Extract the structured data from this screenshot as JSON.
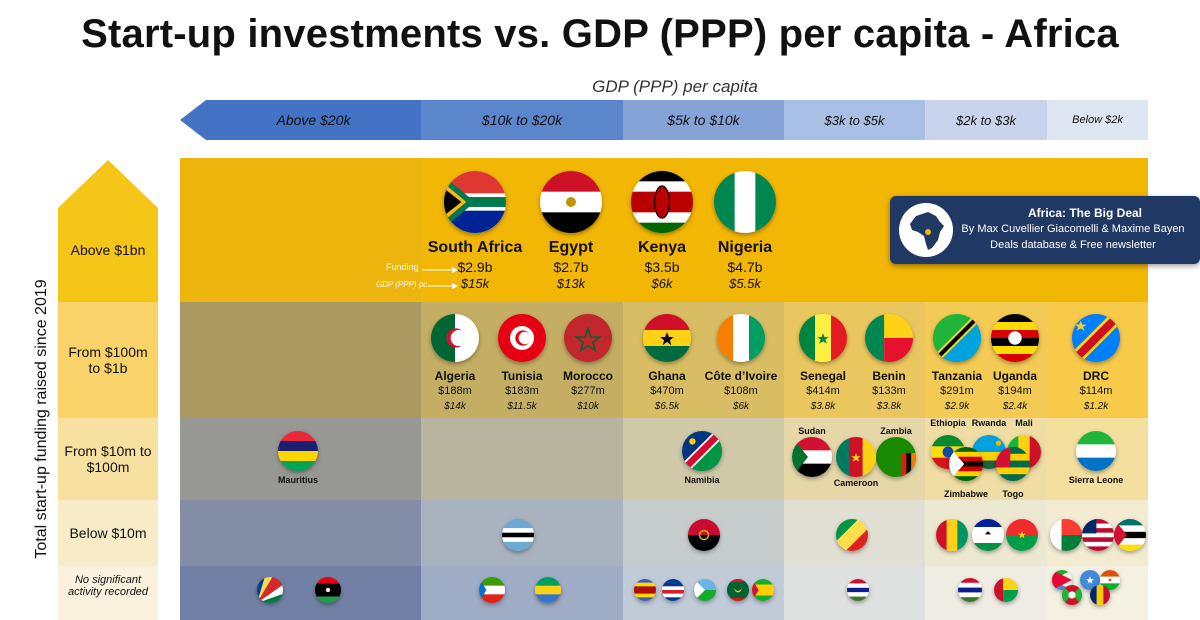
{
  "title": "Start-up investments vs. GDP (PPP) per capita - Africa",
  "chart_data": {
    "type": "table",
    "title": "Start-up investments vs. GDP (PPP) per capita - Africa",
    "xlabel": "GDP (PPP) per capita",
    "ylabel": "Total start-up funding raised since 2019",
    "columns": [
      "Above $20k",
      "$10k to $20k",
      "$5k to $10k",
      "$3k to $5k",
      "$2k to $3k",
      "Below $2k"
    ],
    "rows": [
      "Above $1bn",
      "From $100m to $1b",
      "From $10m to $100m",
      "Below $10m",
      "No significant activity recorded"
    ],
    "legend": {
      "funding": "Funding",
      "gdp": "GDP (PPP) pc"
    },
    "countries": [
      {
        "name": "South Africa",
        "funding": "$2.9b",
        "gdp": "$15k"
      },
      {
        "name": "Egypt",
        "funding": "$2.7b",
        "gdp": "$13k"
      },
      {
        "name": "Kenya",
        "funding": "$3.5b",
        "gdp": "$6k"
      },
      {
        "name": "Nigeria",
        "funding": "$4.7b",
        "gdp": "$5.5k"
      },
      {
        "name": "Algeria",
        "funding": "$188m",
        "gdp": "$14k"
      },
      {
        "name": "Tunisia",
        "funding": "$183m",
        "gdp": "$11.5k"
      },
      {
        "name": "Morocco",
        "funding": "$277m",
        "gdp": "$10k"
      },
      {
        "name": "Ghana",
        "funding": "$470m",
        "gdp": "$6.5k"
      },
      {
        "name": "Côte d’Ivoire",
        "funding": "$108m",
        "gdp": "$6k"
      },
      {
        "name": "Senegal",
        "funding": "$414m",
        "gdp": "$3.8k"
      },
      {
        "name": "Benin",
        "funding": "$133m",
        "gdp": "$3.8k"
      },
      {
        "name": "Tanzania",
        "funding": "$291m",
        "gdp": "$2.9k"
      },
      {
        "name": "Uganda",
        "funding": "$194m",
        "gdp": "$2.4k"
      },
      {
        "name": "DRC",
        "funding": "$114m",
        "gdp": "$1.2k"
      }
    ],
    "mid_tier_countries": [
      "Mauritius",
      "Namibia",
      "Sudan",
      "Zambia",
      "Cameroon",
      "Ethiopia",
      "Rwanda",
      "Mali",
      "Zimbabwe",
      "Togo",
      "Sierra Leone"
    ]
  },
  "info_box": {
    "title": "Africa: The Big Deal",
    "authors": "By Max Cuvellier Giacomelli & Maxime Bayen",
    "tagline": "Deals database & Free newsletter"
  },
  "colors": {
    "row1": "#f2b705",
    "row2": "#f9cc4a",
    "row3": "#f7dc8a",
    "row4": "#f7e7b4",
    "row5": "#faf0d2",
    "col1": "#4472c4",
    "col2": "#5b86cc",
    "col3": "#7f9fd6",
    "col4": "#a9bfe4",
    "col5": "#c9d6ee",
    "col6": "#dde5f3",
    "navy": "#1f3864"
  }
}
